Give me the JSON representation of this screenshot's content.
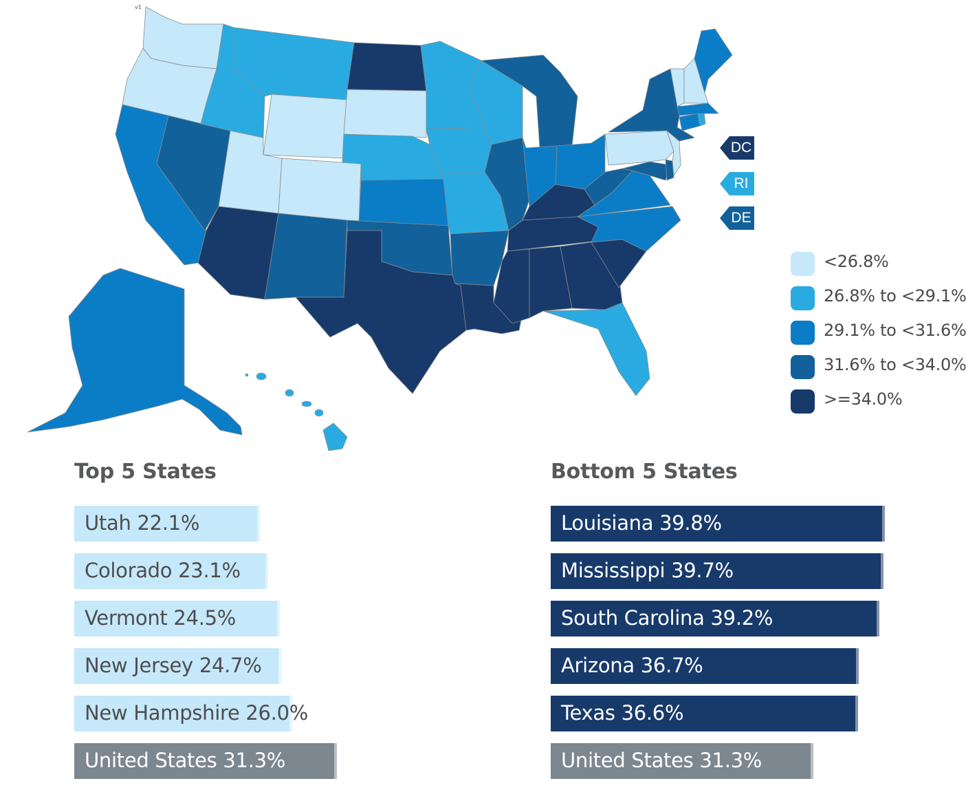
{
  "map": {
    "version_mark": "v1",
    "legend": [
      {
        "label": "<26.8%",
        "color": "#c5e8fa"
      },
      {
        "label": "26.8% to <29.1%",
        "color": "#29abe2"
      },
      {
        "label": "29.1% to <31.6%",
        "color": "#0b7dc7"
      },
      {
        "label": "31.6% to <34.0%",
        "color": "#12619b"
      },
      {
        "label": ">=34.0%",
        "color": "#173a6b"
      }
    ],
    "callouts": [
      {
        "label": "DC",
        "color": "#173a6b"
      },
      {
        "label": "RI",
        "color": "#29abe2"
      },
      {
        "label": "DE",
        "color": "#12619b"
      }
    ],
    "states": [
      {
        "name": "Washington",
        "category": 0
      },
      {
        "name": "Oregon",
        "category": 0
      },
      {
        "name": "California",
        "category": 2
      },
      {
        "name": "Nevada",
        "category": 3
      },
      {
        "name": "Idaho",
        "category": 1
      },
      {
        "name": "Montana",
        "category": 1
      },
      {
        "name": "Wyoming",
        "category": 0
      },
      {
        "name": "Utah",
        "category": 0
      },
      {
        "name": "Colorado",
        "category": 0
      },
      {
        "name": "Arizona",
        "category": 4
      },
      {
        "name": "New Mexico",
        "category": 3
      },
      {
        "name": "North Dakota",
        "category": 4
      },
      {
        "name": "South Dakota",
        "category": 0
      },
      {
        "name": "Nebraska",
        "category": 1
      },
      {
        "name": "Kansas",
        "category": 2
      },
      {
        "name": "Oklahoma",
        "category": 3
      },
      {
        "name": "Texas",
        "category": 4
      },
      {
        "name": "Minnesota",
        "category": 1
      },
      {
        "name": "Iowa",
        "category": 1
      },
      {
        "name": "Missouri",
        "category": 1
      },
      {
        "name": "Arkansas",
        "category": 3
      },
      {
        "name": "Louisiana",
        "category": 4
      },
      {
        "name": "Wisconsin",
        "category": 1
      },
      {
        "name": "Illinois",
        "category": 3
      },
      {
        "name": "Michigan",
        "category": 3
      },
      {
        "name": "Indiana",
        "category": 2
      },
      {
        "name": "Ohio",
        "category": 2
      },
      {
        "name": "Kentucky",
        "category": 4
      },
      {
        "name": "Tennessee",
        "category": 4
      },
      {
        "name": "Mississippi",
        "category": 4
      },
      {
        "name": "Alabama",
        "category": 4
      },
      {
        "name": "Georgia",
        "category": 4
      },
      {
        "name": "Florida",
        "category": 1
      },
      {
        "name": "South Carolina",
        "category": 4
      },
      {
        "name": "North Carolina",
        "category": 2
      },
      {
        "name": "Virginia",
        "category": 2
      },
      {
        "name": "West Virginia",
        "category": 3
      },
      {
        "name": "Maryland",
        "category": 3
      },
      {
        "name": "Delaware",
        "category": 3
      },
      {
        "name": "Pennsylvania",
        "category": 0
      },
      {
        "name": "New Jersey",
        "category": 0
      },
      {
        "name": "New York",
        "category": 3
      },
      {
        "name": "Connecticut",
        "category": 2
      },
      {
        "name": "Rhode Island",
        "category": 1
      },
      {
        "name": "Massachusetts",
        "category": 2
      },
      {
        "name": "Vermont",
        "category": 0
      },
      {
        "name": "New Hampshire",
        "category": 0
      },
      {
        "name": "Maine",
        "category": 2
      },
      {
        "name": "Alaska",
        "category": 2
      },
      {
        "name": "Hawaii",
        "category": 1
      }
    ]
  },
  "top5": {
    "title": "Top 5 States",
    "items": [
      {
        "label": "Utah 22.1%",
        "value": 22.1
      },
      {
        "label": "Colorado 23.1%",
        "value": 23.1
      },
      {
        "label": "Vermont 24.5%",
        "value": 24.5
      },
      {
        "label": "New Jersey 24.7%",
        "value": 24.7
      },
      {
        "label": "New Hampshire 26.0%",
        "value": 26.0
      }
    ],
    "us": {
      "label": "United States 31.3%",
      "value": 31.3
    }
  },
  "bottom5": {
    "title": "Bottom 5 States",
    "items": [
      {
        "label": "Louisiana 39.8%",
        "value": 39.8
      },
      {
        "label": "Mississippi 39.7%",
        "value": 39.7
      },
      {
        "label": "South Carolina 39.2%",
        "value": 39.2
      },
      {
        "label": "Arizona 36.7%",
        "value": 36.7
      },
      {
        "label": "Texas 36.6%",
        "value": 36.6
      }
    ],
    "us": {
      "label": "United States 31.3%",
      "value": 31.3
    }
  }
}
